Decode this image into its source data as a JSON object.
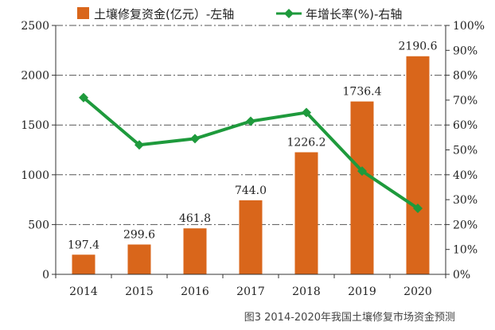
{
  "chart_data": {
    "type": "bar",
    "categories": [
      "2014",
      "2015",
      "2016",
      "2017",
      "2018",
      "2019",
      "2020"
    ],
    "series": [
      {
        "name": "土壤修复资金(亿元）-左轴",
        "type": "bar",
        "axis": "left",
        "color": "#d9661b",
        "values": [
          197.4,
          299.6,
          461.8,
          744.0,
          1226.2,
          1736.4,
          2190.6
        ],
        "labels": [
          "197.4",
          "299.6",
          "461.8",
          "744.0",
          "1226.2",
          "1736.4",
          "2190.6"
        ]
      },
      {
        "name": "年增长率(%)-右轴",
        "type": "line",
        "axis": "right",
        "color": "#1e9a3c",
        "values": [
          71,
          52,
          54.5,
          61.5,
          65,
          41.5,
          26.5
        ]
      }
    ],
    "y_left": {
      "ylim": [
        0,
        2500
      ],
      "ticks": [
        "0",
        "500",
        "1000",
        "1500",
        "2000",
        "2500"
      ]
    },
    "y_right": {
      "ylim": [
        0,
        100
      ],
      "ticks": [
        "0%",
        "10%",
        "20%",
        "30%",
        "40%",
        "50%",
        "60%",
        "70%",
        "80%",
        "90%",
        "100%"
      ]
    },
    "grid": true,
    "legend": "top"
  },
  "caption": "图3 2014-2020年我国土壤修复市场资金预测"
}
